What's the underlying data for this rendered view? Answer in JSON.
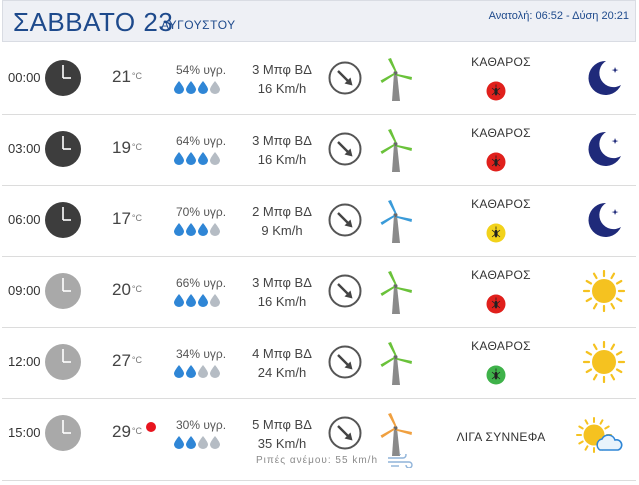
{
  "header": {
    "day": "ΣΑΒΒΑΤΟ 23",
    "month": "ΑΥΓΟΥΣΤΟΥ",
    "sun_times": "Ανατολή: 06:52  - Δύση 20:21"
  },
  "unit_temp": "°C",
  "rows": [
    {
      "time": "00:00",
      "clock": "dark",
      "temp": "21",
      "humidity": "54% υγρ.",
      "drops_filled": 3,
      "wind_bf": "3 Μπφ ΒΔ",
      "wind_kmh": "16 Km/h",
      "turbine": "green",
      "condition": "ΚΑΘΑΡΟΣ",
      "mosquito": "red",
      "icon": "moon-icon"
    },
    {
      "time": "03:00",
      "clock": "dark",
      "temp": "19",
      "humidity": "64% υγρ.",
      "drops_filled": 3,
      "wind_bf": "3 Μπφ ΒΔ",
      "wind_kmh": "16 Km/h",
      "turbine": "green",
      "condition": "ΚΑΘΑΡΟΣ",
      "mosquito": "red",
      "icon": "moon-icon"
    },
    {
      "time": "06:00",
      "clock": "dark",
      "temp": "17",
      "humidity": "70% υγρ.",
      "drops_filled": 3,
      "wind_bf": "2 Μπφ ΒΔ",
      "wind_kmh": "9 Km/h",
      "turbine": "blue",
      "condition": "ΚΑΘΑΡΟΣ",
      "mosquito": "yellow",
      "icon": "moon-icon"
    },
    {
      "time": "09:00",
      "clock": "light",
      "temp": "20",
      "humidity": "66% υγρ.",
      "drops_filled": 3,
      "wind_bf": "3 Μπφ ΒΔ",
      "wind_kmh": "16 Km/h",
      "turbine": "green",
      "condition": "ΚΑΘΑΡΟΣ",
      "mosquito": "red",
      "icon": "sun-icon"
    },
    {
      "time": "12:00",
      "clock": "light",
      "temp": "27",
      "humidity": "34% υγρ.",
      "drops_filled": 2,
      "wind_bf": "4 Μπφ ΒΔ",
      "wind_kmh": "24 Km/h",
      "turbine": "green",
      "condition": "ΚΑΘΑΡΟΣ",
      "mosquito": "green",
      "icon": "sun-icon"
    },
    {
      "time": "15:00",
      "clock": "light",
      "temp": "29",
      "heat_warning": true,
      "humidity": "30% υγρ.",
      "drops_filled": 2,
      "wind_bf": "5 Μπφ ΒΔ",
      "wind_kmh": "35 Km/h",
      "turbine": "orange",
      "condition": "ΛΙΓΑ ΣΥΝΝΕΦΑ",
      "mosquito": null,
      "icon": "sun-cloud-icon",
      "gust": "Ριπές ανέμου: 55 km/h"
    }
  ],
  "colors": {
    "title_blue": "#1e4a8c",
    "drop_blue": "#2f86d6",
    "drop_gray": "#b5bcc4",
    "moon": "#1f2a7a",
    "sun": "#f5c220",
    "turbine_green": "#6ac23a",
    "turbine_blue": "#3a9bd9",
    "turbine_orange": "#f0a040",
    "mosquito_red": "#e0201c",
    "mosquito_yellow": "#f2d21b",
    "mosquito_green": "#3fb24a"
  }
}
